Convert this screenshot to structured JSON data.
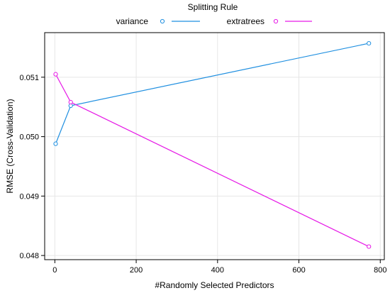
{
  "chart_data": {
    "type": "line",
    "xlabel": "#Randomly Selected Predictors",
    "ylabel": "RMSE (Cross-Validation)",
    "xlim": [
      -25,
      810
    ],
    "ylim": [
      0.04793,
      0.05175
    ],
    "xticks": [
      0,
      200,
      400,
      600,
      800
    ],
    "yticks": [
      0.048,
      0.049,
      0.05,
      0.051
    ],
    "xtick_labels": [
      "0",
      "200",
      "400",
      "600",
      "800"
    ],
    "ytick_labels": [
      "0.048",
      "0.049",
      "0.050",
      "0.051"
    ],
    "grid": true,
    "legend": {
      "title": "Splitting Rule",
      "placement": "top"
    },
    "series": [
      {
        "name": "variance",
        "color": "#1f8fe0",
        "x": [
          2,
          39,
          772
        ],
        "y": [
          0.04988,
          0.05052,
          0.05157
        ]
      },
      {
        "name": "extratrees",
        "color": "#e619e6",
        "x": [
          2,
          39,
          772
        ],
        "y": [
          0.05105,
          0.05058,
          0.04815
        ]
      }
    ]
  }
}
